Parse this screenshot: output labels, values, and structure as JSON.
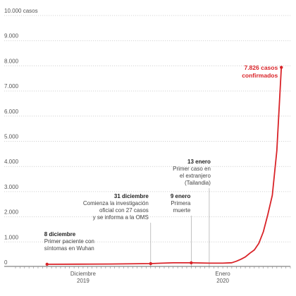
{
  "colors": {
    "line": "#d92328",
    "dot": "#d92328",
    "grid": "#d4d4d4",
    "axis": "#333333",
    "text": "#444444"
  },
  "chart_data": {
    "type": "line",
    "title": "",
    "xlabel": "",
    "ylabel": "",
    "ylim": [
      0,
      10000
    ],
    "y_ticks": [
      {
        "value": 0,
        "label": "0"
      },
      {
        "value": 1000,
        "label": "1.000"
      },
      {
        "value": 2000,
        "label": "2.000"
      },
      {
        "value": 3000,
        "label": "3.000"
      },
      {
        "value": 4000,
        "label": "4.000"
      },
      {
        "value": 5000,
        "label": "5.000"
      },
      {
        "value": 6000,
        "label": "6.000"
      },
      {
        "value": 7000,
        "label": "7.000"
      },
      {
        "value": 8000,
        "label": "8.000"
      },
      {
        "value": 9000,
        "label": "9.000"
      },
      {
        "value": 10000,
        "label": "10.000 casos"
      }
    ],
    "x_range": [
      "2019-12-01",
      "2020-01-31"
    ],
    "x_tick_labels": [
      {
        "date": "2019-12-16",
        "line1": "Diciembre",
        "line2": "2019"
      },
      {
        "date": "2020-01-16",
        "line1": "Enero",
        "line2": "2020"
      }
    ],
    "grid": true,
    "series": [
      {
        "points": [
          {
            "x": "2019-12-08",
            "y": 1
          },
          {
            "x": "2019-12-15",
            "y": 5
          },
          {
            "x": "2019-12-22",
            "y": 10
          },
          {
            "x": "2019-12-31",
            "y": 27
          },
          {
            "x": "2020-01-02",
            "y": 41
          },
          {
            "x": "2020-01-05",
            "y": 59
          },
          {
            "x": "2020-01-09",
            "y": 59
          },
          {
            "x": "2020-01-13",
            "y": 45
          },
          {
            "x": "2020-01-16",
            "y": 45
          },
          {
            "x": "2020-01-18",
            "y": 62
          },
          {
            "x": "2020-01-19",
            "y": 121
          },
          {
            "x": "2020-01-20",
            "y": 198
          },
          {
            "x": "2020-01-21",
            "y": 291
          },
          {
            "x": "2020-01-22",
            "y": 440
          },
          {
            "x": "2020-01-23",
            "y": 571
          },
          {
            "x": "2020-01-24",
            "y": 830
          },
          {
            "x": "2020-01-25",
            "y": 1287
          },
          {
            "x": "2020-01-26",
            "y": 1975
          },
          {
            "x": "2020-01-27",
            "y": 2744
          },
          {
            "x": "2020-01-28",
            "y": 4515
          },
          {
            "x": "2020-01-29",
            "y": 7826
          }
        ]
      }
    ],
    "dots": [
      {
        "x": "2019-12-08",
        "y": 1
      },
      {
        "x": "2019-12-31",
        "y": 27
      },
      {
        "x": "2020-01-09",
        "y": 59
      },
      {
        "x": "2020-01-29",
        "y": 7826
      }
    ],
    "annotations": [
      {
        "date": "2019-12-08",
        "title": "8 diciembre",
        "lines": [
          "Primer paciente con",
          "síntomas en Wuhan"
        ],
        "align": "start"
      },
      {
        "date": "2019-12-31",
        "title": "31 diciembre",
        "lines": [
          "Comienza la investigación",
          "oficial con 27 casos",
          "y se informa a la OMS"
        ],
        "align": "end"
      },
      {
        "date": "2020-01-09",
        "title": "9 enero",
        "lines": [
          "Primera",
          "muerte"
        ],
        "align": "end"
      },
      {
        "date": "2020-01-13",
        "title": "13 enero",
        "lines": [
          "Primer caso en",
          "el extranjero",
          "(Tailandia)"
        ],
        "align": "end"
      }
    ],
    "highlight": {
      "date": "2020-01-29",
      "lines": [
        "7.826 casos",
        "confirmados"
      ]
    }
  }
}
